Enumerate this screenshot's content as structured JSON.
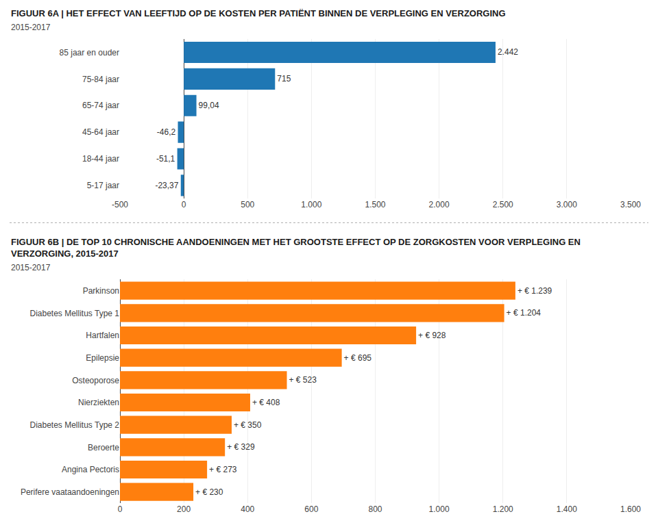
{
  "chart_data": [
    {
      "type": "bar",
      "orientation": "horizontal",
      "title": "FIGUUR 6A | HET EFFECT VAN LEEFTIJD OP DE KOSTEN PER PATIËNT BINNEN DE VERPLEGING EN VERZORGING",
      "subtitle": "2015-2017",
      "categories": [
        "85 jaar en ouder",
        "75-84 jaar",
        "65-74 jaar",
        "45-64 jaar",
        "18-44 jaar",
        "5-17 jaar"
      ],
      "values": [
        2442,
        715,
        99.04,
        -46.2,
        -51.1,
        -23.37
      ],
      "value_labels": [
        "2.442",
        "715",
        "99,04",
        "-46,2",
        "-51,1",
        "-23,37"
      ],
      "data_labels": true,
      "xlim": [
        -500,
        3500
      ],
      "xticks": [
        -500,
        0,
        500,
        {
          "value": 1000,
          "label": "1.000"
        },
        {
          "value": 1500,
          "label": "1.500"
        },
        {
          "value": 2000,
          "label": "2.000"
        },
        {
          "value": 2500,
          "label": "2.500"
        },
        {
          "value": 3000,
          "label": "3.000"
        },
        {
          "value": 3500,
          "label": "3.500"
        }
      ],
      "grid": true
    },
    {
      "type": "bar",
      "orientation": "horizontal",
      "title": "FIGUUR 6B | DE TOP 10 CHRONISCHE AANDOENINGEN MET HET GROOTSTE EFFECT OP DE ZORGKOSTEN VOOR VERPLEGING EN VERZORGING, 2015-2017",
      "subtitle": "2015-2017",
      "categories": [
        "Parkinson",
        "Diabetes Mellitus Type 1",
        "Hartfalen",
        "Epilepsie",
        "Osteoporose",
        "Nierziekten",
        "Diabetes Mellitus Type 2",
        "Beroerte",
        "Angina Pectoris",
        "Perifere vaataandoeningen"
      ],
      "values": [
        1239,
        1204,
        928,
        695,
        523,
        408,
        350,
        329,
        273,
        230
      ],
      "value_labels": [
        "+ € 1.239",
        "+ € 1.204",
        "+ € 928",
        "+ € 695",
        "+ € 523",
        "+ € 408",
        "+ € 350",
        "+ € 329",
        "+ € 273",
        "+ € 230"
      ],
      "data_labels": true,
      "xlim": [
        0,
        1600
      ],
      "xticks": [
        0,
        200,
        400,
        600,
        800,
        {
          "value": 1000,
          "label": "1.000"
        },
        {
          "value": 1200,
          "label": "1.200"
        },
        {
          "value": 1400,
          "label": "1.400"
        },
        {
          "value": 1600,
          "label": "1.600"
        }
      ],
      "grid": true
    }
  ]
}
